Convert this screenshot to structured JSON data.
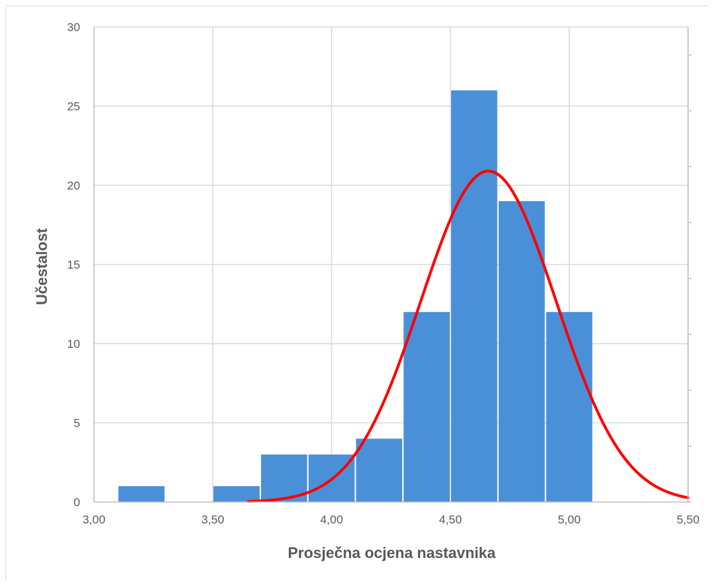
{
  "chart_data": {
    "type": "bar",
    "xlabel": "Prosječna ocjena nastavnika",
    "ylabel": "Učestalost",
    "xlim": [
      3.0,
      5.5
    ],
    "ylim": [
      0,
      30
    ],
    "x_ticks": [
      3.0,
      3.5,
      4.0,
      4.5,
      5.0,
      5.5
    ],
    "x_tick_labels": [
      "3,00",
      "3,50",
      "4,00",
      "4,50",
      "5,00",
      "5,50"
    ],
    "y_ticks": [
      0,
      5,
      10,
      15,
      20,
      25,
      30
    ],
    "y_tick_labels": [
      "0",
      "5",
      "10",
      "15",
      "20",
      "25",
      "30"
    ],
    "grid": true,
    "bar_color": "#4a90d9",
    "bins": [
      {
        "from": 3.1,
        "to": 3.3,
        "value": 1
      },
      {
        "from": 3.5,
        "to": 3.7,
        "value": 1
      },
      {
        "from": 3.7,
        "to": 3.9,
        "value": 3
      },
      {
        "from": 3.9,
        "to": 4.1,
        "value": 3
      },
      {
        "from": 4.1,
        "to": 4.3,
        "value": 4
      },
      {
        "from": 4.3,
        "to": 4.5,
        "value": 12
      },
      {
        "from": 4.5,
        "to": 4.7,
        "value": 26
      },
      {
        "from": 4.7,
        "to": 4.9,
        "value": 19
      },
      {
        "from": 4.9,
        "to": 5.1,
        "value": 12
      }
    ],
    "curve": {
      "type": "normal",
      "color": "#ff0000",
      "mean": 4.66,
      "sd": 0.285,
      "peak": 20.9,
      "x_range": [
        3.65,
        5.5
      ]
    }
  }
}
